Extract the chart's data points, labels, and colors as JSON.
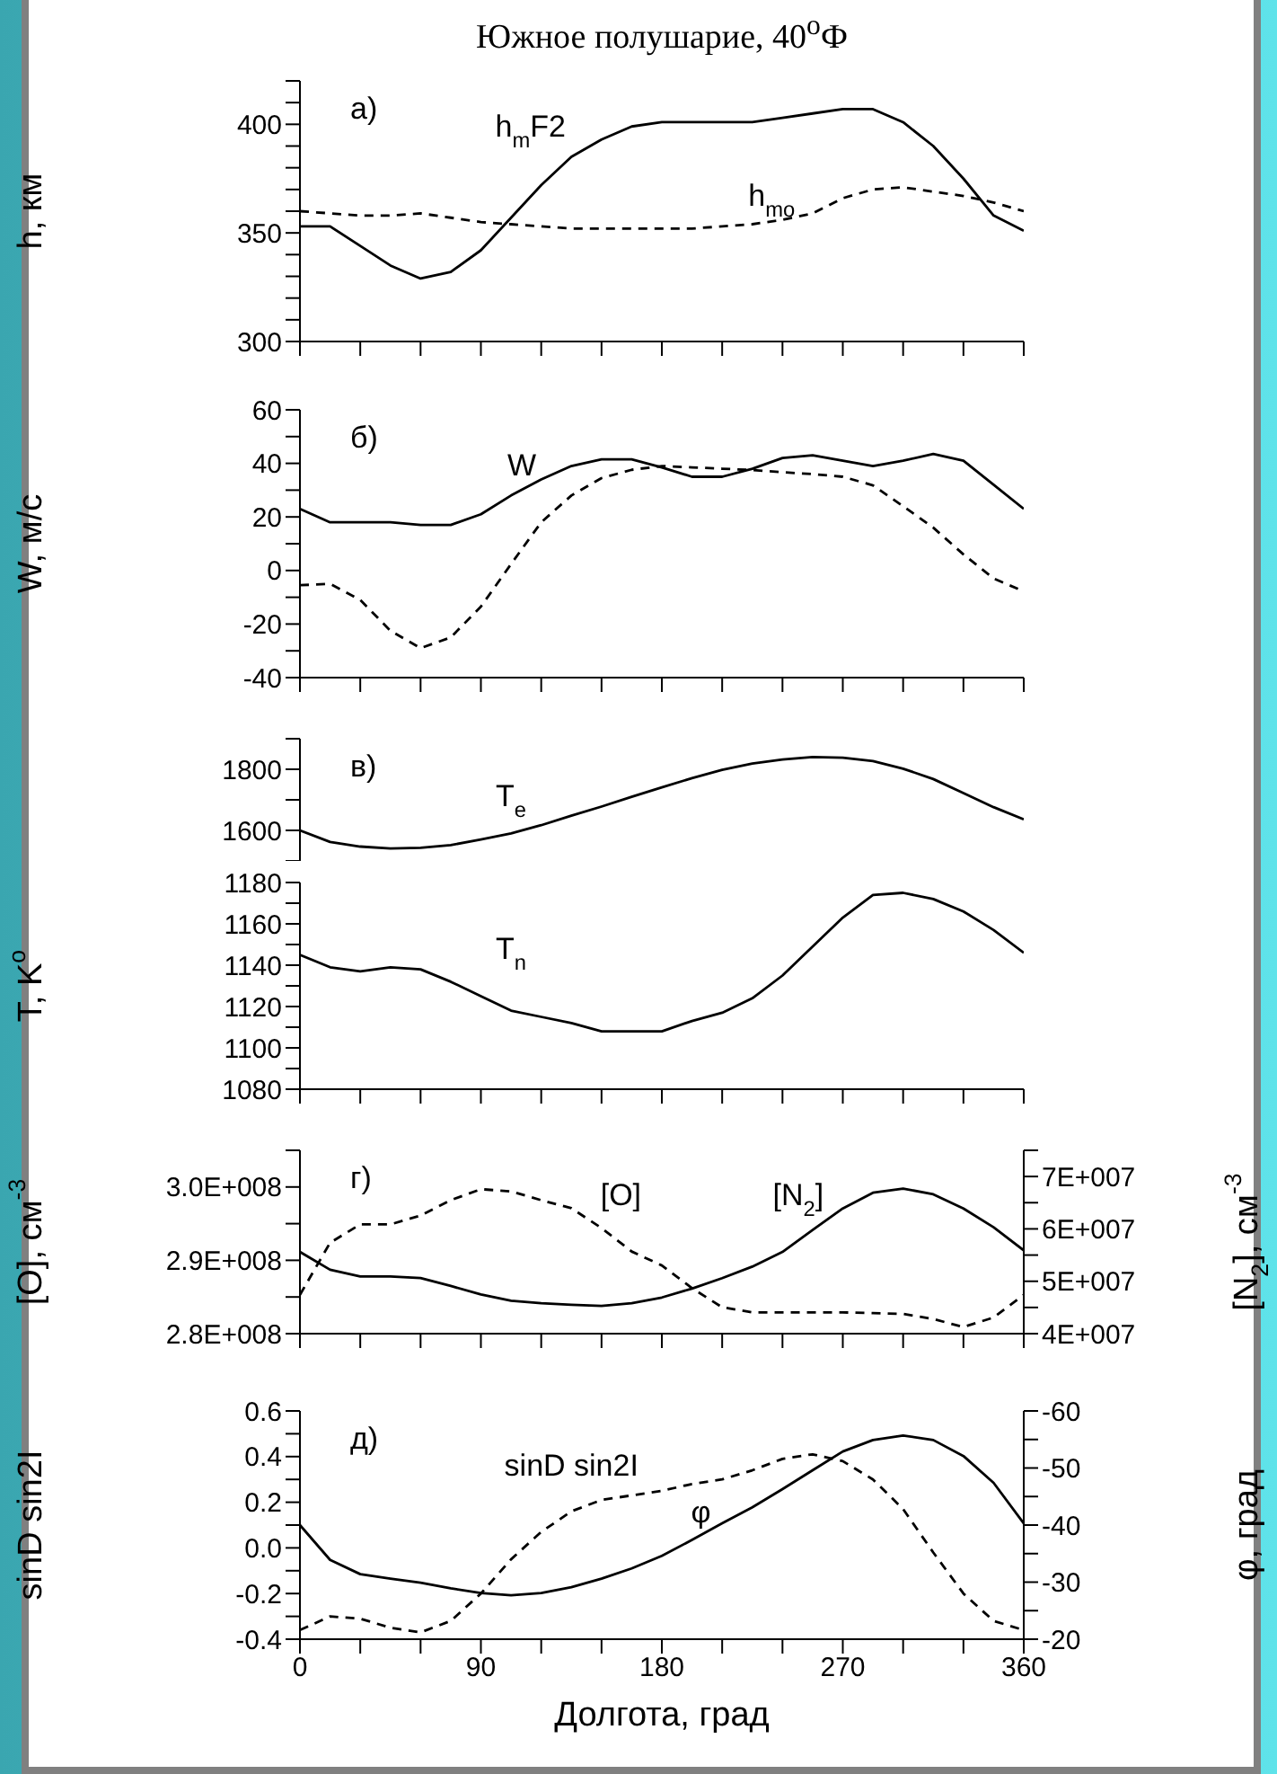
{
  "chart_data": [
    {
      "type": "line",
      "title": "Южное полушарие, 40$^{o}$Ф",
      "ylabel": "h, км",
      "tick_labels": "y",
      "annotations": [
        "а)"
      ],
      "x": [
        0,
        15,
        30,
        45,
        60,
        75,
        90,
        105,
        120,
        135,
        150,
        165,
        180,
        195,
        210,
        225,
        240,
        255,
        270,
        285,
        300,
        315,
        330,
        345,
        360
      ],
      "xlim": [
        0,
        360
      ],
      "xticks": [
        0,
        {
          "value": 30,
          "label": null
        },
        {
          "value": 60,
          "label": null
        },
        90,
        {
          "value": 120,
          "label": null
        },
        {
          "value": 150,
          "label": null
        },
        180,
        {
          "value": 210,
          "label": null
        },
        {
          "value": 240,
          "label": null
        },
        270,
        {
          "value": 300,
          "label": null
        },
        {
          "value": 330,
          "label": null
        },
        360
      ],
      "ylim": [
        300,
        420
      ],
      "yticks": [
        300,
        {
          "value": 310,
          "label": null
        },
        {
          "value": 320,
          "label": null
        },
        {
          "value": 330,
          "label": null
        },
        {
          "value": 340,
          "label": null
        },
        350,
        {
          "value": 360,
          "label": null
        },
        {
          "value": 370,
          "label": null
        },
        {
          "value": 380,
          "label": null
        },
        {
          "value": 390,
          "label": null
        },
        400,
        {
          "value": 410,
          "label": null
        },
        {
          "value": 420,
          "label": null
        }
      ],
      "series": [
        {
          "name": "h$_{m}$F2",
          "color": "#000000",
          "line_style": "solid",
          "values": [
            353,
            353,
            344,
            335,
            329,
            332,
            342,
            357,
            372,
            385,
            393,
            399,
            401,
            401,
            401,
            401,
            403,
            405,
            407,
            407,
            401,
            390,
            375,
            358,
            351
          ]
        },
        {
          "name": "h$_{mo}$",
          "color": "#000000",
          "line_style": "dashed",
          "values": [
            360,
            359,
            358,
            358,
            359,
            357,
            355,
            354,
            353,
            352,
            352,
            352,
            352,
            352,
            353,
            354,
            356,
            359,
            366,
            370,
            371,
            369,
            367,
            364,
            360
          ]
        }
      ]
    },
    {
      "type": "line",
      "ylabel": "W, м/с",
      "tick_labels": "y",
      "annotations": [
        "б)"
      ],
      "x": [
        0,
        15,
        30,
        45,
        60,
        75,
        90,
        105,
        120,
        135,
        150,
        165,
        180,
        195,
        210,
        225,
        240,
        255,
        270,
        285,
        300,
        315,
        330,
        345,
        360
      ],
      "xlim": [
        0,
        360
      ],
      "xticks": [
        0,
        {
          "value": 30,
          "label": null
        },
        {
          "value": 60,
          "label": null
        },
        90,
        {
          "value": 120,
          "label": null
        },
        {
          "value": 150,
          "label": null
        },
        180,
        {
          "value": 210,
          "label": null
        },
        {
          "value": 240,
          "label": null
        },
        270,
        {
          "value": 300,
          "label": null
        },
        {
          "value": 330,
          "label": null
        },
        360
      ],
      "ylim": [
        -40,
        60
      ],
      "yticks": [
        -40,
        {
          "value": -30,
          "label": null
        },
        -20,
        {
          "value": -10,
          "label": null
        },
        0,
        {
          "value": 10,
          "label": null
        },
        20,
        {
          "value": 30,
          "label": null
        },
        40,
        {
          "value": 50,
          "label": null
        },
        60
      ],
      "series": [
        {
          "name": "W",
          "color": "#000000",
          "line_style": "solid",
          "values": [
            23,
            18,
            18,
            18,
            17,
            17,
            21,
            28,
            34,
            39,
            41.5,
            41.5,
            38.5,
            35,
            35,
            38,
            42,
            43,
            41,
            39,
            41,
            43.5,
            41,
            32,
            23
          ]
        },
        {
          "color": "#000000",
          "line_style": "dashed",
          "values": [
            -5.5,
            -5,
            -11,
            -22.5,
            -29,
            -25,
            -13.5,
            2.4,
            18,
            28,
            34.5,
            37.6,
            39,
            38.5,
            38,
            37.5,
            36.7,
            36,
            35,
            31.8,
            24,
            16,
            6,
            -3,
            -7.8
          ]
        }
      ]
    },
    {
      "type": "line",
      "tick_labels": "y",
      "annotations": [
        "в)"
      ],
      "x": [
        0,
        15,
        30,
        45,
        60,
        75,
        90,
        105,
        120,
        135,
        150,
        165,
        180,
        195,
        210,
        225,
        240,
        255,
        270,
        285,
        300,
        315,
        330,
        345,
        360
      ],
      "xlim": [
        0,
        360
      ],
      "ylim": [
        1500,
        1900
      ],
      "yticks": [
        {
          "value": 1500,
          "label": null
        },
        1600,
        {
          "value": 1700,
          "label": null
        },
        1800,
        {
          "value": 1900,
          "label": null
        }
      ],
      "series": [
        {
          "name": "T$_{e}$",
          "color": "#000000",
          "line_style": "solid",
          "values": [
            1600,
            1562,
            1547,
            1541,
            1543,
            1552,
            1570,
            1590,
            1617,
            1648,
            1678,
            1710,
            1741,
            1771,
            1798,
            1819,
            1832,
            1840,
            1838,
            1827,
            1802,
            1768,
            1722,
            1676,
            1636
          ]
        }
      ]
    },
    {
      "type": "line",
      "ylabel": "T, K$^{o}$",
      "tick_labels": "y",
      "x": [
        0,
        15,
        30,
        45,
        60,
        75,
        90,
        105,
        120,
        135,
        150,
        165,
        180,
        195,
        210,
        225,
        240,
        255,
        270,
        285,
        300,
        315,
        330,
        345,
        360
      ],
      "xlim": [
        0,
        360
      ],
      "xticks": [
        0,
        {
          "value": 30,
          "label": null
        },
        {
          "value": 60,
          "label": null
        },
        90,
        {
          "value": 120,
          "label": null
        },
        {
          "value": 150,
          "label": null
        },
        180,
        {
          "value": 210,
          "label": null
        },
        {
          "value": 240,
          "label": null
        },
        270,
        {
          "value": 300,
          "label": null
        },
        {
          "value": 330,
          "label": null
        },
        360
      ],
      "ylim": [
        1080,
        1180
      ],
      "yticks": [
        1080,
        {
          "value": 1090,
          "label": null
        },
        1100,
        {
          "value": 1110,
          "label": null
        },
        1120,
        {
          "value": 1130,
          "label": null
        },
        1140,
        {
          "value": 1150,
          "label": null
        },
        1160,
        {
          "value": 1170,
          "label": null
        },
        1180
      ],
      "series": [
        {
          "name": "T$_{n}$",
          "color": "#000000",
          "line_style": "solid",
          "values": [
            1145,
            1139,
            1137,
            1139,
            1138,
            1132,
            1125,
            1118,
            1115,
            1112,
            1108,
            1108,
            1108,
            1113,
            1117,
            1124,
            1135,
            1149,
            1163,
            1174,
            1175,
            1172,
            1166,
            1157,
            1146
          ]
        }
      ]
    },
    {
      "type": "line",
      "ylabel": "[O], см$^{-3}$",
      "y2label": "[N$_{2}$], см$^{-3}$",
      "tick_labels": "y",
      "annotations": [
        "г)"
      ],
      "x": [
        0,
        15,
        30,
        45,
        60,
        75,
        90,
        105,
        120,
        135,
        150,
        165,
        180,
        195,
        210,
        225,
        240,
        255,
        270,
        285,
        300,
        315,
        330,
        345,
        360
      ],
      "xlim": [
        0,
        360
      ],
      "xticks": [
        0,
        {
          "value": 30,
          "label": null
        },
        {
          "value": 60,
          "label": null
        },
        90,
        {
          "value": 120,
          "label": null
        },
        {
          "value": 150,
          "label": null
        },
        180,
        {
          "value": 210,
          "label": null
        },
        {
          "value": 240,
          "label": null
        },
        270,
        {
          "value": 300,
          "label": null
        },
        {
          "value": 330,
          "label": null
        },
        360
      ],
      "ylim": [
        280000000,
        305000000
      ],
      "yticks": [
        {
          "value": 280000000,
          "label": "2.8E+008"
        },
        {
          "value": 285000000,
          "label": null
        },
        {
          "value": 290000000,
          "label": "2.9E+008"
        },
        {
          "value": 295000000,
          "label": null
        },
        {
          "value": 300000000,
          "label": "3.0E+008"
        },
        {
          "value": 305000000,
          "label": null
        }
      ],
      "y2lim": [
        40000000,
        75000000
      ],
      "y2ticks": [
        {
          "value": 40000000,
          "label": "4E+007"
        },
        {
          "value": 45000000,
          "label": null
        },
        {
          "value": 50000000,
          "label": "5E+007"
        },
        {
          "value": 55000000,
          "label": null
        },
        {
          "value": 60000000,
          "label": "6E+007"
        },
        {
          "value": 65000000,
          "label": null
        },
        {
          "value": 70000000,
          "label": "7E+007"
        },
        {
          "value": 75000000,
          "label": null
        }
      ],
      "series": [
        {
          "name": "[O]",
          "color": "#000000",
          "line_style": "dashed",
          "values": [
            285300000,
            292400000,
            294900000,
            294900000,
            296100000,
            298200000,
            299700000,
            299400000,
            298200000,
            297100000,
            294400000,
            291200000,
            289300000,
            286200000,
            283600000,
            282900000,
            282900000,
            282900000,
            282900000,
            282800000,
            282700000,
            282000000,
            280900000,
            282200000,
            285300000
          ]
        },
        {
          "name": "[N$_{2}$]",
          "color": "#000000",
          "line_style": "solid",
          "axis": "y2",
          "values": [
            55600000,
            52200000,
            50900000,
            50900000,
            50600000,
            49100000,
            47500000,
            46300000,
            45800000,
            45500000,
            45300000,
            45800000,
            46900000,
            48600000,
            50600000,
            52800000,
            55600000,
            59800000,
            63900000,
            66900000,
            67700000,
            66600000,
            63900000,
            60300000,
            55900000
          ]
        }
      ]
    },
    {
      "type": "line",
      "ylabel": "sinD sin2I",
      "y2label": "φ, град",
      "xlabel": "Долгота, град",
      "annotations": [
        "д)"
      ],
      "x": [
        0,
        15,
        30,
        45,
        60,
        75,
        90,
        105,
        120,
        135,
        150,
        165,
        180,
        195,
        210,
        225,
        240,
        255,
        270,
        285,
        300,
        315,
        330,
        345,
        360
      ],
      "xlim": [
        0,
        360
      ],
      "xticks": [
        0,
        {
          "value": 30,
          "label": null
        },
        {
          "value": 60,
          "label": null
        },
        90,
        {
          "value": 120,
          "label": null
        },
        {
          "value": 150,
          "label": null
        },
        180,
        {
          "value": 210,
          "label": null
        },
        {
          "value": 240,
          "label": null
        },
        270,
        {
          "value": 300,
          "label": null
        },
        {
          "value": 330,
          "label": null
        },
        360
      ],
      "ylim": [
        -0.4,
        0.6
      ],
      "yticks": [
        -0.4,
        {
          "value": -0.3,
          "label": null
        },
        -0.2,
        {
          "value": -0.1,
          "label": null
        },
        {
          "value": 0,
          "label": "0.0"
        },
        {
          "value": 0.1,
          "label": null
        },
        0.2,
        {
          "value": 0.3,
          "label": null
        },
        0.4,
        {
          "value": 0.5,
          "label": null
        },
        0.6
      ],
      "y2lim": [
        -20,
        -60
      ],
      "y2ticks": [
        -20,
        {
          "value": -25,
          "label": null
        },
        -30,
        {
          "value": -35,
          "label": null
        },
        -40,
        {
          "value": -45,
          "label": null
        },
        -50,
        {
          "value": -55,
          "label": null
        },
        -60
      ],
      "series": [
        {
          "name": "sinD sin2I",
          "color": "#000000",
          "line_style": "dashed",
          "values": [
            -0.36,
            -0.3,
            -0.31,
            -0.35,
            -0.37,
            -0.32,
            -0.2,
            -0.05,
            0.07,
            0.16,
            0.21,
            0.23,
            0.25,
            0.28,
            0.3,
            0.34,
            0.39,
            0.41,
            0.38,
            0.3,
            0.17,
            -0.02,
            -0.2,
            -0.32,
            -0.36
          ]
        },
        {
          "name": "φ",
          "color": "#000000",
          "line_style": "solid",
          "axis": "y2",
          "values": [
            -40,
            -33.9,
            -31.4,
            -30.6,
            -29.9,
            -28.9,
            -28.1,
            -27.7,
            -28.1,
            -29.1,
            -30.6,
            -32.4,
            -34.6,
            -37.4,
            -40.3,
            -43.1,
            -46.3,
            -49.6,
            -52.9,
            -54.9,
            -55.7,
            -54.9,
            -52.1,
            -47.4,
            -40.3
          ]
        }
      ]
    }
  ]
}
